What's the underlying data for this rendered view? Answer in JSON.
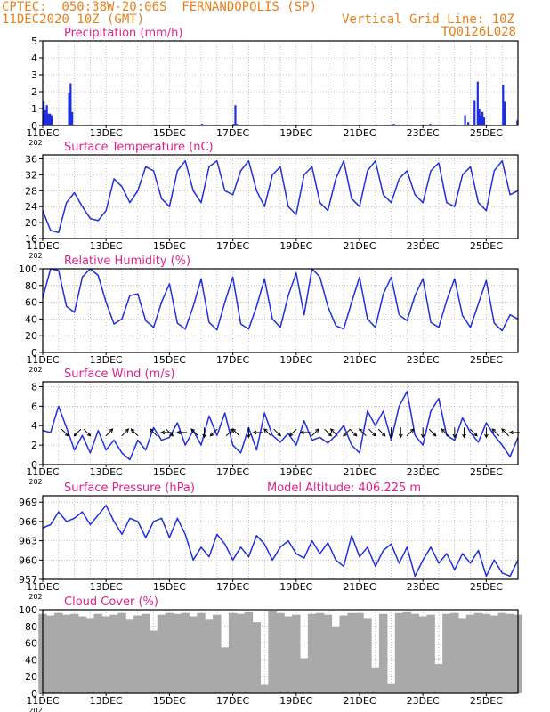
{
  "header": {
    "line1_left": "CPTEC:  050:38W-20:06S  FERNANDOPOLIS (SP)",
    "line2_left": "11DEC2020 10Z (GMT)",
    "line2_right": "Vertical Grid Line: 10Z",
    "line3_right": "TQ0126L028",
    "model_altitude": "Model Altitude: 406.225 m"
  },
  "colors": {
    "header": "#e8801a",
    "title": "#e0208a",
    "series": "#1f2fe0",
    "cloud": "#a9a9a9",
    "frame": "#000000",
    "grid": "#9a9a9a"
  },
  "x_labels": [
    "11DEC",
    "13DEC",
    "15DEC",
    "17DEC",
    "19DEC",
    "21DEC",
    "23DEC",
    "25DEC"
  ],
  "x_sublabel": "202",
  "chart_data": [
    {
      "type": "bar",
      "title": "Precipitation (mm/h)",
      "xlim": [
        0,
        15
      ],
      "ylim": [
        0,
        5
      ],
      "yticks": [
        0,
        1,
        2,
        3,
        4,
        5
      ],
      "x": [
        0.0,
        0.05,
        0.1,
        0.15,
        0.2,
        0.25,
        0.8,
        0.85,
        0.9,
        5.0,
        6.0,
        6.05,
        6.1,
        7.6,
        10.5,
        11.05,
        11.2,
        12.2,
        13.3,
        13.4,
        13.6,
        13.7,
        13.75,
        13.8,
        13.85,
        13.9,
        14.5,
        14.55,
        14.95
      ],
      "values": [
        1.4,
        0.9,
        1.2,
        0.7,
        0.7,
        0.6,
        1.9,
        2.5,
        0.8,
        0.1,
        0.1,
        1.2,
        0.1,
        0.05,
        0.05,
        0.1,
        0.05,
        0.1,
        0.6,
        0.2,
        1.5,
        2.6,
        1.0,
        0.6,
        0.8,
        0.5,
        2.4,
        1.4,
        0.3
      ]
    },
    {
      "type": "line",
      "title": "Surface Temperature (nC)",
      "xlim": [
        0,
        15
      ],
      "ylim": [
        16,
        37
      ],
      "yticks": [
        16,
        20,
        24,
        28,
        32,
        36
      ],
      "x": [
        0,
        0.25,
        0.5,
        0.75,
        1,
        1.25,
        1.5,
        1.75,
        2,
        2.25,
        2.5,
        2.75,
        3,
        3.25,
        3.5,
        3.75,
        4,
        4.25,
        4.5,
        4.75,
        5,
        5.25,
        5.5,
        5.75,
        6,
        6.25,
        6.5,
        6.75,
        7,
        7.25,
        7.5,
        7.75,
        8,
        8.25,
        8.5,
        8.75,
        9,
        9.25,
        9.5,
        9.75,
        10,
        10.25,
        10.5,
        10.75,
        11,
        11.25,
        11.5,
        11.75,
        12,
        12.25,
        12.5,
        12.75,
        13,
        13.25,
        13.5,
        13.75,
        14,
        14.25,
        14.5,
        14.75,
        15
      ],
      "values": [
        23,
        18,
        17.5,
        25,
        27.5,
        24,
        21,
        20.5,
        23,
        31,
        29,
        25,
        28,
        34,
        33,
        26,
        24,
        33,
        35.5,
        28,
        25,
        34,
        35.5,
        28,
        27,
        33,
        35.5,
        28,
        24,
        32,
        34,
        24,
        22,
        32,
        34,
        25,
        23,
        31,
        35.5,
        26,
        24,
        33,
        35.5,
        27,
        25,
        31,
        33,
        27,
        25,
        33,
        35,
        25,
        24,
        32,
        34,
        25,
        23,
        33,
        35.5,
        27,
        28
      ]
    },
    {
      "type": "line",
      "title": "Relative Humidity (%)",
      "xlim": [
        0,
        15
      ],
      "ylim": [
        0,
        100
      ],
      "yticks": [
        0,
        20,
        40,
        60,
        80,
        100
      ],
      "x": [
        0,
        0.25,
        0.5,
        0.75,
        1,
        1.25,
        1.5,
        1.75,
        2,
        2.25,
        2.5,
        2.75,
        3,
        3.25,
        3.5,
        3.75,
        4,
        4.25,
        4.5,
        4.75,
        5,
        5.25,
        5.5,
        5.75,
        6,
        6.25,
        6.5,
        6.75,
        7,
        7.25,
        7.5,
        7.75,
        8,
        8.25,
        8.5,
        8.75,
        9,
        9.25,
        9.5,
        9.75,
        10,
        10.25,
        10.5,
        10.75,
        11,
        11.25,
        11.5,
        11.75,
        12,
        12.25,
        12.5,
        12.75,
        13,
        13.25,
        13.5,
        13.75,
        14,
        14.25,
        14.5,
        14.75,
        15
      ],
      "values": [
        65,
        100,
        98,
        55,
        48,
        90,
        100,
        92,
        60,
        34,
        40,
        68,
        70,
        38,
        30,
        60,
        82,
        35,
        28,
        55,
        88,
        36,
        27,
        60,
        90,
        34,
        28,
        55,
        88,
        40,
        30,
        68,
        95,
        45,
        100,
        90,
        55,
        32,
        28,
        60,
        90,
        40,
        30,
        70,
        90,
        45,
        38,
        68,
        88,
        36,
        30,
        62,
        88,
        44,
        30,
        58,
        86,
        35,
        26,
        45,
        40
      ]
    },
    {
      "type": "line",
      "title": "Surface Wind (m/s)",
      "xlim": [
        0,
        15
      ],
      "ylim": [
        0,
        8.5
      ],
      "yticks": [
        0,
        2,
        4,
        6,
        8
      ],
      "x": [
        0,
        0.25,
        0.5,
        0.75,
        1,
        1.25,
        1.5,
        1.75,
        2,
        2.25,
        2.5,
        2.75,
        3,
        3.25,
        3.5,
        3.75,
        4,
        4.25,
        4.5,
        4.75,
        5,
        5.25,
        5.5,
        5.75,
        6,
        6.25,
        6.5,
        6.75,
        7,
        7.25,
        7.5,
        7.75,
        8,
        8.25,
        8.5,
        8.75,
        9,
        9.25,
        9.5,
        9.75,
        10,
        10.25,
        10.5,
        10.75,
        11,
        11.25,
        11.5,
        11.75,
        12,
        12.25,
        12.5,
        12.75,
        13,
        13.25,
        13.5,
        13.75,
        14,
        14.25,
        14.5,
        14.75,
        15
      ],
      "values": [
        3.5,
        3.3,
        6,
        3.8,
        1.5,
        3,
        1.2,
        3.5,
        1.5,
        2.5,
        1.2,
        0.5,
        2.5,
        1.5,
        3.8,
        2.5,
        2.8,
        4.3,
        2,
        3.5,
        2,
        5,
        3,
        5.3,
        2,
        1.2,
        3.8,
        1.5,
        5.3,
        3,
        2.3,
        3.2,
        2,
        4.5,
        2.5,
        2.8,
        2.2,
        3,
        4,
        2,
        1.2,
        5.5,
        4,
        5.5,
        2.5,
        6,
        7.5,
        3,
        2,
        5.5,
        6.8,
        3,
        2.5,
        4.8,
        3.3,
        2.3,
        4.3,
        3,
        2,
        0.8,
        2.8
      ],
      "arrows": [
        [
          0.7,
          "SE"
        ],
        [
          1.1,
          "SW"
        ],
        [
          1.4,
          "SE"
        ],
        [
          2.1,
          "NE"
        ],
        [
          2.6,
          "NE"
        ],
        [
          2.9,
          "NW"
        ],
        [
          3.5,
          "NW"
        ],
        [
          3.9,
          "W"
        ],
        [
          4.0,
          "SE"
        ],
        [
          4.4,
          "W"
        ],
        [
          4.8,
          "NW"
        ],
        [
          5.1,
          "S"
        ],
        [
          5.4,
          "SW"
        ],
        [
          5.9,
          "NE"
        ],
        [
          6.1,
          "NW"
        ],
        [
          6.5,
          "S"
        ],
        [
          6.8,
          "W"
        ],
        [
          7.1,
          "NW"
        ],
        [
          7.4,
          "SE"
        ],
        [
          7.9,
          "SW"
        ],
        [
          8.3,
          "W"
        ],
        [
          8.6,
          "NE"
        ],
        [
          9.0,
          "SE"
        ],
        [
          9.2,
          "NW"
        ],
        [
          9.6,
          "SW"
        ],
        [
          9.8,
          "SE"
        ],
        [
          10.1,
          "NW"
        ],
        [
          10.4,
          "SE"
        ],
        [
          10.7,
          "SE"
        ],
        [
          11.0,
          "S"
        ],
        [
          11.3,
          "S"
        ],
        [
          11.6,
          "NE"
        ],
        [
          12.0,
          "S"
        ],
        [
          12.3,
          "SE"
        ],
        [
          12.7,
          "NW"
        ],
        [
          13.0,
          "S"
        ],
        [
          13.3,
          "S"
        ],
        [
          13.6,
          "SE"
        ],
        [
          14.0,
          "S"
        ],
        [
          14.3,
          "NW"
        ],
        [
          14.6,
          "NW"
        ],
        [
          14.9,
          "W"
        ]
      ]
    },
    {
      "type": "line",
      "title": "Surface Pressure (hPa)",
      "xlim": [
        0,
        15
      ],
      "ylim": [
        957,
        970
      ],
      "yticks": [
        957,
        960,
        963,
        966,
        969
      ],
      "x": [
        0,
        0.25,
        0.5,
        0.75,
        1,
        1.25,
        1.5,
        1.75,
        2,
        2.25,
        2.5,
        2.75,
        3,
        3.25,
        3.5,
        3.75,
        4,
        4.25,
        4.5,
        4.75,
        5,
        5.25,
        5.5,
        5.75,
        6,
        6.25,
        6.5,
        6.75,
        7,
        7.25,
        7.5,
        7.75,
        8,
        8.25,
        8.5,
        8.75,
        9,
        9.25,
        9.5,
        9.75,
        10,
        10.25,
        10.5,
        10.75,
        11,
        11.25,
        11.5,
        11.75,
        12,
        12.25,
        12.5,
        12.75,
        13,
        13.25,
        13.5,
        13.75,
        14,
        14.25,
        14.5,
        14.75,
        15
      ],
      "values": [
        965,
        965.5,
        967.5,
        966,
        966.5,
        967.5,
        965.5,
        967,
        968.5,
        966,
        964,
        966.5,
        966,
        963.5,
        966,
        966.5,
        963.5,
        966.5,
        964,
        960,
        962,
        960.5,
        964,
        962.5,
        960,
        962,
        960.5,
        963.8,
        962.5,
        960,
        962,
        963,
        961,
        960.3,
        963,
        961,
        962.7,
        960,
        959,
        963.8,
        960.5,
        962,
        959,
        961.5,
        962.5,
        959.5,
        962,
        957.5,
        960,
        962,
        959.5,
        961,
        958.5,
        961,
        959.5,
        961.5,
        957.5,
        960,
        958,
        957.5,
        960
      ]
    },
    {
      "type": "bar",
      "title": "Cloud Cover (%)",
      "xlim": [
        0,
        15
      ],
      "ylim": [
        0,
        100
      ],
      "yticks": [
        0,
        20,
        40,
        60,
        80,
        100
      ],
      "x": [
        0,
        0.25,
        0.5,
        0.75,
        1,
        1.25,
        1.5,
        1.75,
        2,
        2.25,
        2.5,
        2.75,
        3,
        3.25,
        3.5,
        3.75,
        4,
        4.25,
        4.5,
        4.75,
        5,
        5.25,
        5.5,
        5.75,
        6,
        6.25,
        6.5,
        6.75,
        7,
        7.25,
        7.5,
        7.75,
        8,
        8.25,
        8.5,
        8.75,
        9,
        9.25,
        9.5,
        9.75,
        10,
        10.25,
        10.5,
        10.75,
        11,
        11.25,
        11.5,
        11.75,
        12,
        12.25,
        12.5,
        12.75,
        13,
        13.25,
        13.5,
        13.75,
        14,
        14.25,
        14.5,
        14.75,
        15
      ],
      "values": [
        95,
        93,
        96,
        94,
        95,
        92,
        90,
        95,
        92,
        94,
        96,
        88,
        93,
        95,
        75,
        94,
        96,
        95,
        96,
        92,
        96,
        88,
        94,
        55,
        96,
        95,
        97,
        85,
        10,
        98,
        96,
        92,
        94,
        42,
        95,
        96,
        94,
        80,
        93,
        96,
        96,
        90,
        30,
        95,
        12,
        96,
        97,
        95,
        92,
        94,
        35,
        95,
        96,
        90,
        94,
        96,
        95,
        93,
        96,
        95,
        94
      ]
    }
  ]
}
